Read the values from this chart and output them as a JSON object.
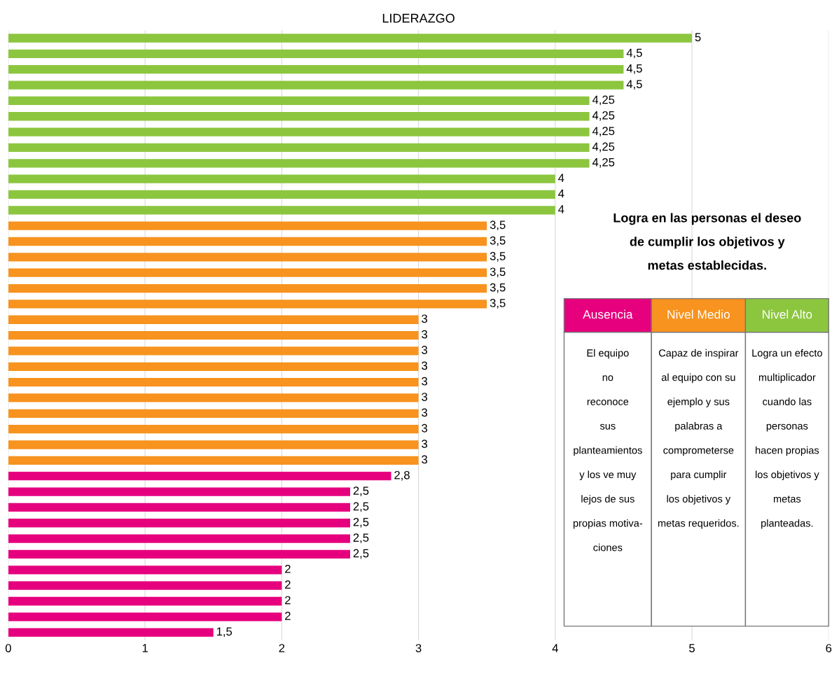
{
  "chart_data": {
    "type": "bar",
    "orientation": "horizontal",
    "title": "LIDERAZGO",
    "categories": [
      null,
      null,
      null,
      null,
      null,
      null,
      null,
      null,
      null,
      null,
      null,
      null,
      null,
      null,
      null,
      null,
      null,
      null,
      null,
      null,
      null,
      null,
      null,
      null,
      null,
      null,
      null,
      null,
      null,
      null,
      null,
      null,
      null,
      null,
      null,
      null,
      null,
      null,
      null
    ],
    "series": [
      {
        "name": "Ausencia",
        "color": "#e6007e",
        "values": [
          null,
          null,
          null,
          null,
          null,
          null,
          null,
          null,
          null,
          null,
          null,
          null,
          null,
          null,
          null,
          null,
          null,
          null,
          null,
          null,
          null,
          null,
          null,
          null,
          null,
          null,
          null,
          null,
          2.8,
          2.5,
          2.5,
          2.5,
          2.5,
          2.5,
          2,
          2,
          2,
          2,
          1.5
        ],
        "value_labels": [
          null,
          null,
          null,
          null,
          null,
          null,
          null,
          null,
          null,
          null,
          null,
          null,
          null,
          null,
          null,
          null,
          null,
          null,
          null,
          null,
          null,
          null,
          null,
          null,
          null,
          null,
          null,
          null,
          "2,8",
          "2,5",
          "2,5",
          "2,5",
          "2,5",
          "2,5",
          "2",
          "2",
          "2",
          "2",
          "1,5"
        ]
      },
      {
        "name": "Nivel Medio",
        "color": "#f7931e",
        "values": [
          null,
          null,
          null,
          null,
          null,
          null,
          null,
          null,
          null,
          null,
          null,
          null,
          3.5,
          3.5,
          3.5,
          3.5,
          3.5,
          3.5,
          3,
          3,
          3,
          3,
          3,
          3,
          3,
          3,
          3,
          3,
          null,
          null,
          null,
          null,
          null,
          null,
          null,
          null,
          null,
          null,
          null
        ],
        "value_labels": [
          null,
          null,
          null,
          null,
          null,
          null,
          null,
          null,
          null,
          null,
          null,
          null,
          "3,5",
          "3,5",
          "3,5",
          "3,5",
          "3,5",
          "3,5",
          "3",
          "3",
          "3",
          "3",
          "3",
          "3",
          "3",
          "3",
          "3",
          "3",
          null,
          null,
          null,
          null,
          null,
          null,
          null,
          null,
          null,
          null,
          null
        ]
      },
      {
        "name": "Nivel Alto",
        "color": "#8cc63f",
        "values": [
          5,
          4.5,
          4.5,
          4.5,
          4.25,
          4.25,
          4.25,
          4.25,
          4.25,
          4,
          4,
          4,
          null,
          null,
          null,
          null,
          null,
          null,
          null,
          null,
          null,
          null,
          null,
          null,
          null,
          null,
          null,
          null,
          null,
          null,
          null,
          null,
          null,
          null,
          null,
          null,
          null,
          null,
          null
        ],
        "value_labels": [
          "5",
          "4,5",
          "4,5",
          "4,5",
          "4,25",
          "4,25",
          "4,25",
          "4,25",
          "4,25",
          "4",
          "4",
          "4",
          null,
          null,
          null,
          null,
          null,
          null,
          null,
          null,
          null,
          null,
          null,
          null,
          null,
          null,
          null,
          null,
          null,
          null,
          null,
          null,
          null,
          null,
          null,
          null,
          null,
          null,
          null
        ]
      }
    ],
    "xlim": [
      0,
      6
    ],
    "xticks": [
      0,
      1,
      2,
      3,
      4,
      5,
      6
    ],
    "grid": "x",
    "legend": "right",
    "annotations": [
      "Logra en las personas el deseo\nde cumplir los objetivos y\nmetas establecidas.",
      "El equipo\nno\nreconoce\nsus\nplanteamientos\ny los ve muy\nlejos de sus\npropias motiva-\nciones",
      "Capaz de inspirar\nal equipo con su\nejemplo y sus\npalabras a\ncomprometerse\npara cumplir\nlos objetivos y\nmetas requeridos.",
      "Logra un efecto\nmultiplicador\ncuando las\npersonas\nhacen propias\nlos objetivos y\nmetas\nplanteadas."
    ]
  }
}
